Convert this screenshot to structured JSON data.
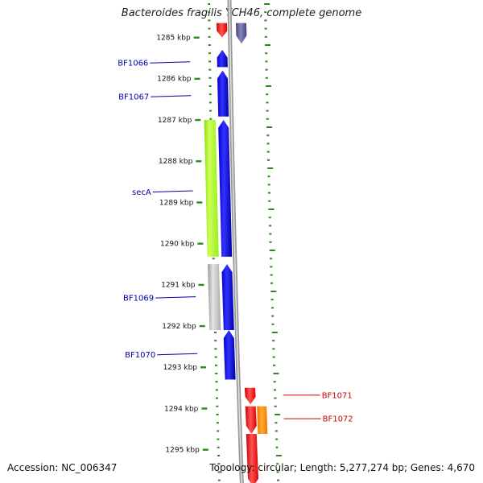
{
  "title": "Bacteroides fragilis YCH46, complete genome",
  "footer": {
    "accession": "Accession: NC_006347",
    "summary": "Topology: circular; Length: 5,277,274 bp; Genes: 4,670"
  },
  "colors": {
    "forward_gene": "#0000ee",
    "reverse_gene": "#ee0000",
    "rna_gene": "#ff8800",
    "feature_green": "#99ee22",
    "feature_gray": "#bbbbbb",
    "feature_purple": "#555599",
    "tick": "#2a8a1a",
    "axis": "#888888",
    "label_blue": "#0000aa",
    "label_red": "#cc0000"
  },
  "ruler": {
    "unit": "kbp",
    "ticks": [
      1285,
      1286,
      1287,
      1288,
      1289,
      1290,
      1291,
      1292,
      1293,
      1294,
      1295
    ],
    "tick_labels": [
      "1285 kbp",
      "1286 kbp",
      "1287 kbp",
      "1288 kbp",
      "1289 kbp",
      "1290 kbp",
      "1291 kbp",
      "1292 kbp",
      "1293 kbp",
      "1294 kbp",
      "1295 kbp"
    ]
  },
  "features": [
    {
      "id": "top-red",
      "start": 1284.65,
      "end": 1285.0,
      "track": "inner",
      "strand": "-",
      "kind": "reverse_gene"
    },
    {
      "id": "top-purple",
      "start": 1284.65,
      "end": 1285.15,
      "track": "outer",
      "strand": "-",
      "kind": "feature_purple"
    },
    {
      "id": "BF1066",
      "start": 1285.3,
      "end": 1285.72,
      "track": "inner",
      "strand": "+",
      "kind": "forward_gene"
    },
    {
      "id": "BF1067",
      "start": 1285.8,
      "end": 1286.92,
      "track": "inner",
      "strand": "+",
      "kind": "forward_gene"
    },
    {
      "id": "secA",
      "start": 1287.0,
      "end": 1290.32,
      "track": "inner",
      "strand": "+",
      "kind": "forward_gene"
    },
    {
      "id": "green-feature",
      "start": 1287.0,
      "end": 1290.32,
      "track": "far",
      "strand": ".",
      "kind": "feature_green"
    },
    {
      "id": "BF1069",
      "start": 1290.5,
      "end": 1292.1,
      "track": "inner",
      "strand": "+",
      "kind": "forward_gene"
    },
    {
      "id": "gray-feature",
      "start": 1290.5,
      "end": 1292.1,
      "track": "far",
      "strand": ".",
      "kind": "feature_gray"
    },
    {
      "id": "BF1070",
      "start": 1292.1,
      "end": 1293.3,
      "track": "inner",
      "strand": "+",
      "kind": "forward_gene"
    },
    {
      "id": "BF1071",
      "start": 1293.5,
      "end": 1293.9,
      "track": "outer",
      "strand": "-",
      "kind": "reverse_gene"
    },
    {
      "id": "BF1072",
      "start": 1293.95,
      "end": 1294.62,
      "track": "outer",
      "strand": "-",
      "kind": "reverse_gene"
    },
    {
      "id": "orange-feature",
      "start": 1293.95,
      "end": 1294.62,
      "track": "rna",
      "strand": ".",
      "kind": "rna_gene"
    },
    {
      "id": "bottom-red",
      "start": 1294.62,
      "end": 1295.9,
      "track": "outer",
      "strand": "-",
      "kind": "reverse_gene"
    }
  ],
  "labels": [
    {
      "text": "BF1066",
      "position": 1285.62,
      "side": "left",
      "color": "label_blue"
    },
    {
      "text": "BF1067",
      "position": 1286.44,
      "side": "left",
      "color": "label_blue"
    },
    {
      "text": "secA",
      "position": 1288.75,
      "side": "left",
      "color": "label_blue"
    },
    {
      "text": "BF1069",
      "position": 1291.32,
      "side": "left",
      "color": "label_blue"
    },
    {
      "text": "BF1070",
      "position": 1292.7,
      "side": "left",
      "color": "label_blue"
    },
    {
      "text": "BF1071",
      "position": 1293.68,
      "side": "right",
      "color": "label_red"
    },
    {
      "text": "BF1072",
      "position": 1294.25,
      "side": "right",
      "color": "label_red"
    }
  ]
}
